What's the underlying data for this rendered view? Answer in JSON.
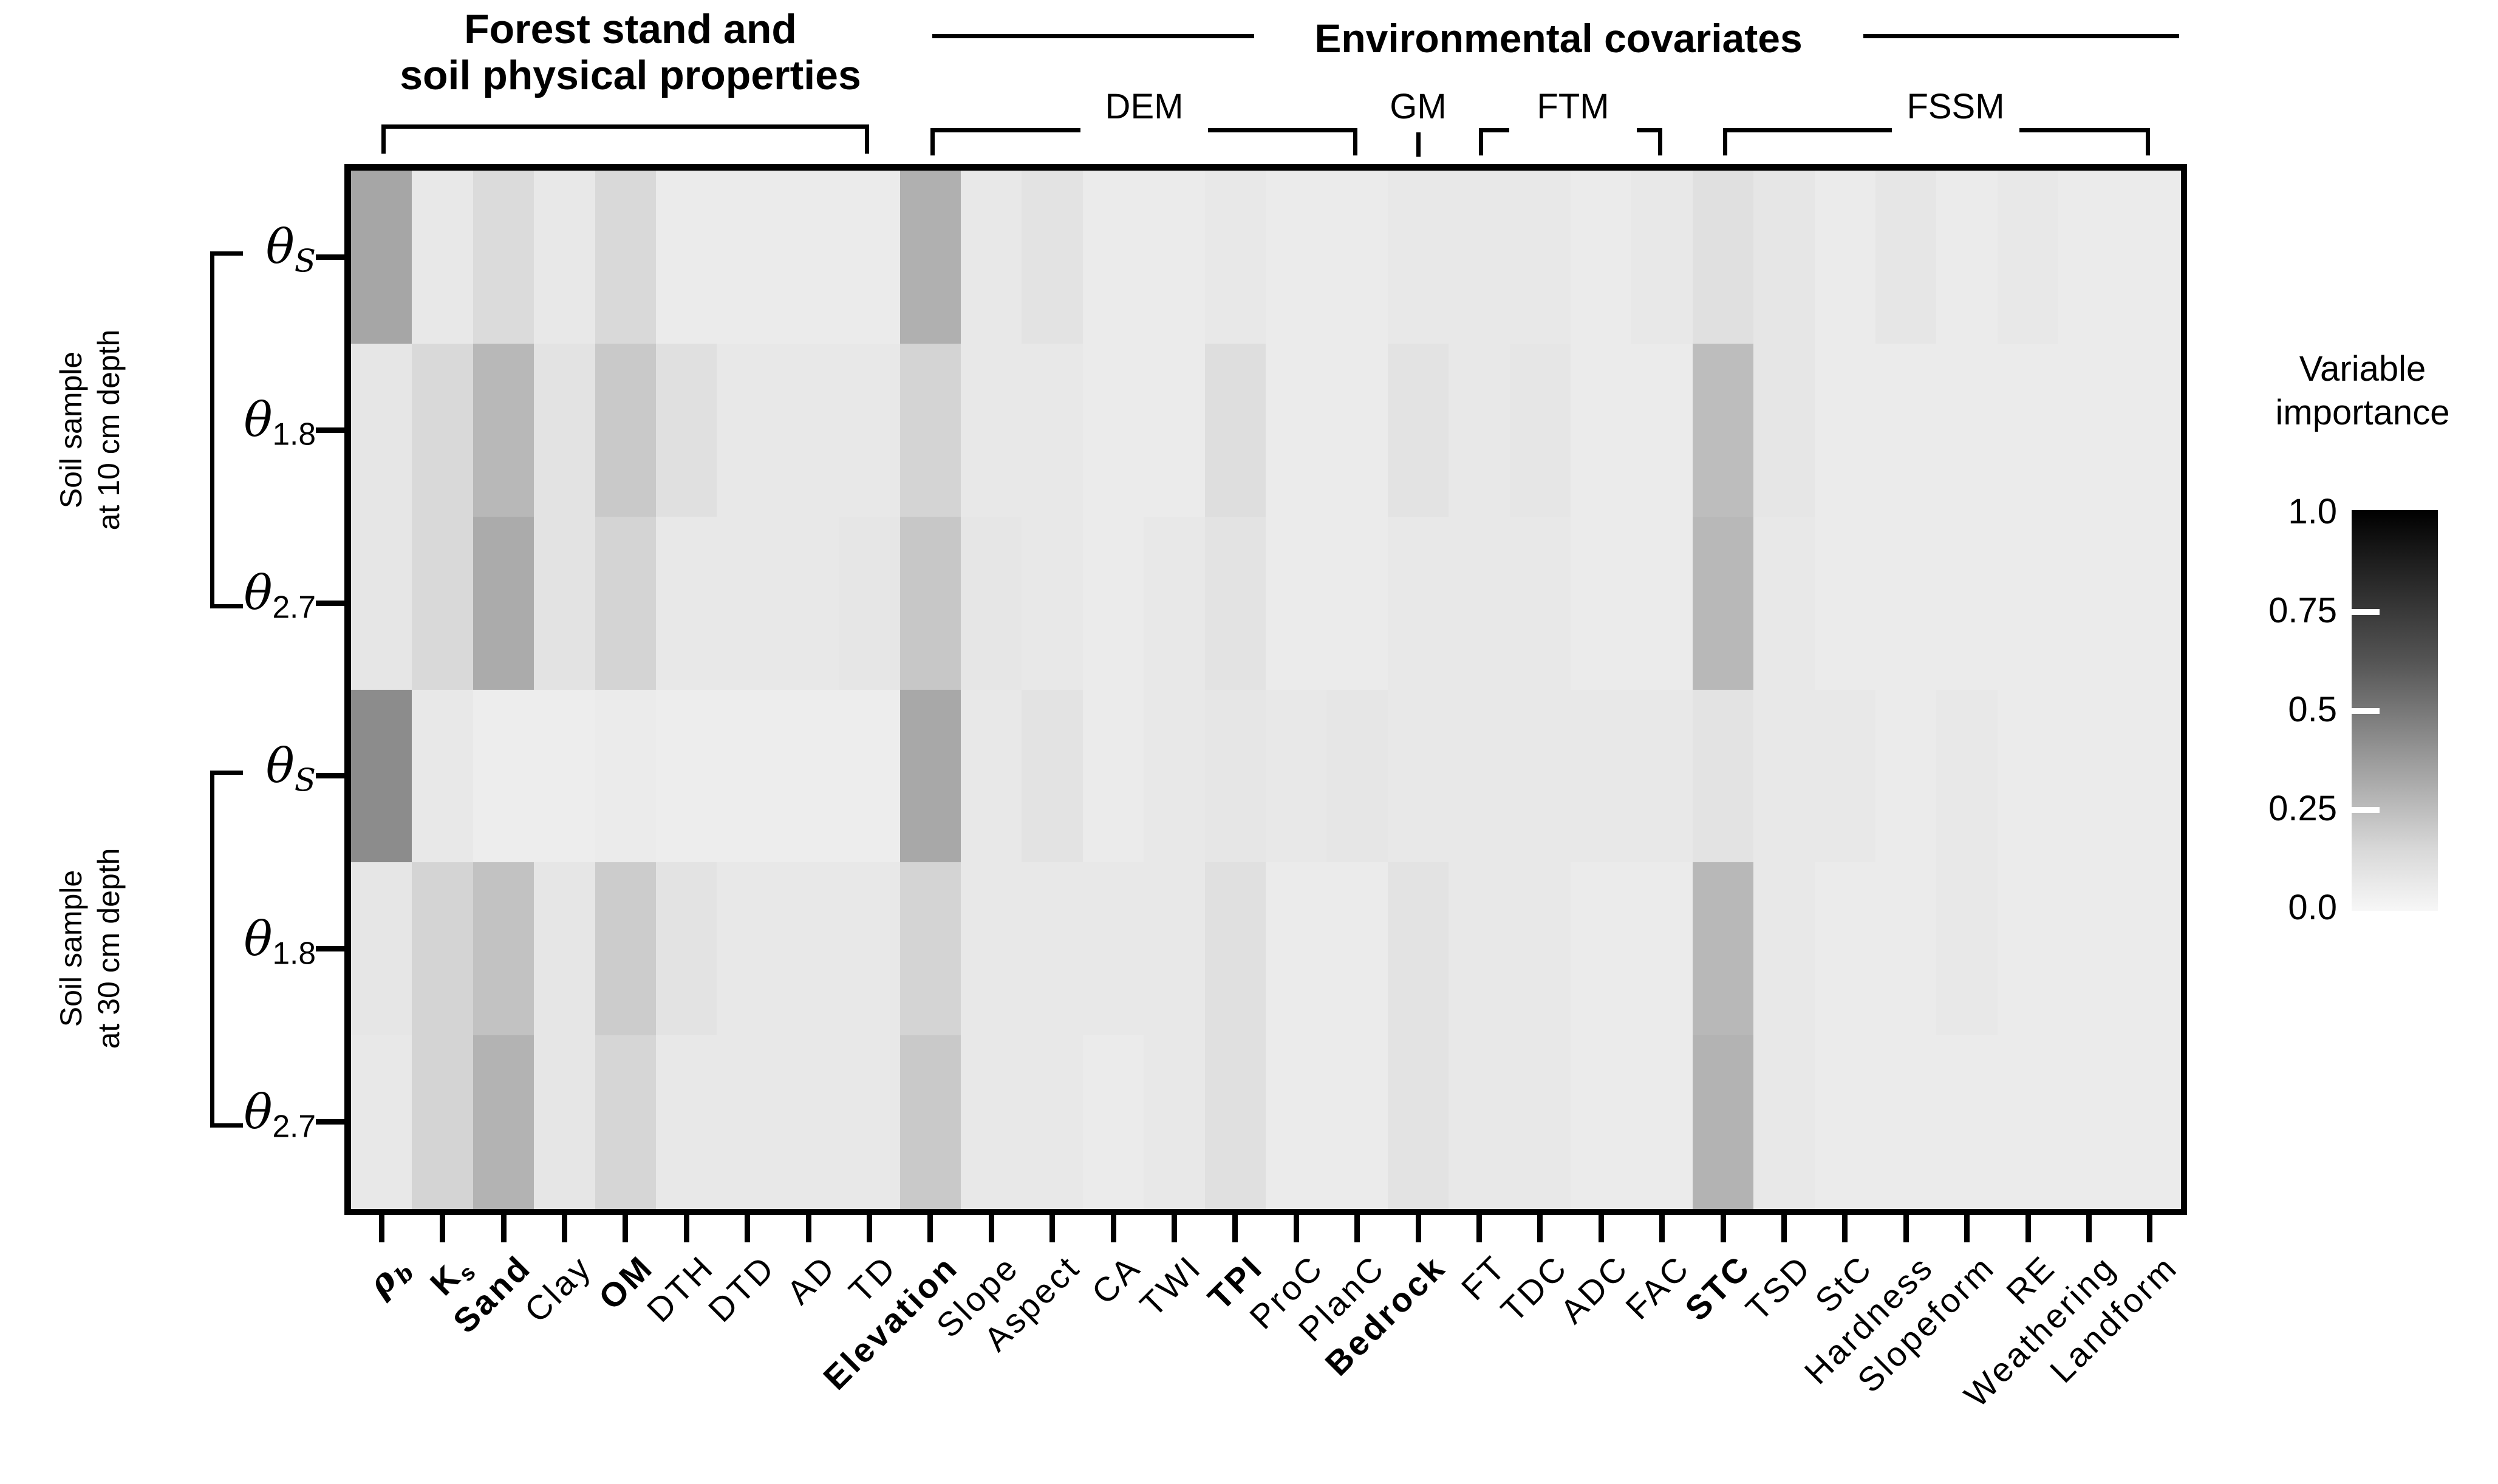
{
  "chart_data": {
    "type": "heatmap",
    "description": "Variable importance heatmap for soil moisture models",
    "header_groups": {
      "forest": {
        "lines": [
          "Forest stand and",
          "soil physical properties"
        ],
        "col_start": 0,
        "col_end": 8
      },
      "environmental": {
        "title": "Environmental covariates",
        "col_start": 9,
        "col_end": 29
      }
    },
    "subgroups": [
      {
        "label": "DEM",
        "col_start": 9,
        "col_end": 16
      },
      {
        "label": "GM",
        "col_start": 17,
        "col_end": 17
      },
      {
        "label": "FTM",
        "col_start": 18,
        "col_end": 21
      },
      {
        "label": "FSSM",
        "col_start": 22,
        "col_end": 29
      }
    ],
    "row_groups": [
      {
        "lines": [
          "Soil sample",
          "at 10 cm depth"
        ],
        "row_start": 0,
        "row_end": 2
      },
      {
        "lines": [
          "Soil sample",
          "at 30 cm depth"
        ],
        "row_start": 3,
        "row_end": 5
      }
    ],
    "rows": [
      {
        "base": "θ",
        "sub": "S",
        "sub_italic": true
      },
      {
        "base": "θ",
        "sub": "1.8",
        "sub_italic": false
      },
      {
        "base": "θ",
        "sub": "2.7",
        "sub_italic": false
      },
      {
        "base": "θ",
        "sub": "S",
        "sub_italic": true
      },
      {
        "base": "θ",
        "sub": "1.8",
        "sub_italic": false
      },
      {
        "base": "θ",
        "sub": "2.7",
        "sub_italic": false
      }
    ],
    "columns": [
      {
        "base": "ρ",
        "sub": "b",
        "bold": true,
        "math": true
      },
      {
        "base": "K",
        "sub": "s",
        "bold": true
      },
      {
        "base": "Sand",
        "bold": true
      },
      {
        "base": "Clay"
      },
      {
        "base": "OM",
        "bold": true
      },
      {
        "base": "DTH"
      },
      {
        "base": "DTD"
      },
      {
        "base": "AD"
      },
      {
        "base": "TD"
      },
      {
        "base": "Elevation",
        "bold": true
      },
      {
        "base": "Slope"
      },
      {
        "base": "Aspect"
      },
      {
        "base": "CA"
      },
      {
        "base": "TWI"
      },
      {
        "base": "TPI",
        "bold": true
      },
      {
        "base": "ProC"
      },
      {
        "base": "PlanC"
      },
      {
        "base": "Bedrock",
        "bold": true
      },
      {
        "base": "FT"
      },
      {
        "base": "TDC"
      },
      {
        "base": "ADC"
      },
      {
        "base": "FAC"
      },
      {
        "base": "STC",
        "bold": true
      },
      {
        "base": "TSD"
      },
      {
        "base": "StC"
      },
      {
        "base": "Hardness"
      },
      {
        "base": "Slopeform"
      },
      {
        "base": "RE"
      },
      {
        "base": "Weathering"
      },
      {
        "base": "Landform"
      }
    ],
    "values": [
      [
        0.35,
        0.09,
        0.14,
        0.09,
        0.15,
        0.08,
        0.08,
        0.08,
        0.08,
        0.31,
        0.09,
        0.11,
        0.08,
        0.08,
        0.09,
        0.08,
        0.08,
        0.09,
        0.09,
        0.09,
        0.08,
        0.09,
        0.12,
        0.1,
        0.08,
        0.1,
        0.08,
        0.09,
        0.08,
        0.08
      ],
      [
        0.1,
        0.15,
        0.28,
        0.11,
        0.21,
        0.12,
        0.09,
        0.09,
        0.09,
        0.17,
        0.09,
        0.09,
        0.08,
        0.08,
        0.13,
        0.08,
        0.08,
        0.11,
        0.09,
        0.1,
        0.08,
        0.08,
        0.26,
        0.1,
        0.08,
        0.08,
        0.08,
        0.08,
        0.08,
        0.08
      ],
      [
        0.1,
        0.15,
        0.33,
        0.11,
        0.17,
        0.09,
        0.09,
        0.09,
        0.1,
        0.22,
        0.1,
        0.09,
        0.08,
        0.09,
        0.11,
        0.08,
        0.08,
        0.09,
        0.09,
        0.09,
        0.08,
        0.08,
        0.28,
        0.09,
        0.08,
        0.08,
        0.08,
        0.08,
        0.08,
        0.08
      ],
      [
        0.45,
        0.09,
        0.07,
        0.07,
        0.08,
        0.07,
        0.07,
        0.07,
        0.07,
        0.34,
        0.09,
        0.11,
        0.08,
        0.09,
        0.1,
        0.09,
        0.1,
        0.09,
        0.09,
        0.09,
        0.09,
        0.09,
        0.11,
        0.09,
        0.09,
        0.08,
        0.09,
        0.08,
        0.08,
        0.08
      ],
      [
        0.1,
        0.17,
        0.24,
        0.1,
        0.2,
        0.11,
        0.09,
        0.09,
        0.09,
        0.17,
        0.09,
        0.09,
        0.09,
        0.09,
        0.12,
        0.08,
        0.08,
        0.11,
        0.09,
        0.09,
        0.08,
        0.08,
        0.28,
        0.09,
        0.08,
        0.08,
        0.09,
        0.08,
        0.08,
        0.08
      ],
      [
        0.09,
        0.17,
        0.3,
        0.1,
        0.16,
        0.09,
        0.09,
        0.09,
        0.09,
        0.21,
        0.09,
        0.09,
        0.08,
        0.09,
        0.12,
        0.08,
        0.08,
        0.11,
        0.09,
        0.09,
        0.08,
        0.08,
        0.3,
        0.09,
        0.08,
        0.08,
        0.08,
        0.08,
        0.08,
        0.08
      ]
    ],
    "value_range": [
      0,
      1
    ],
    "colors": {
      "high": "#000000",
      "low": "#f7f7f7"
    },
    "legend": {
      "title_lines": [
        "Variable",
        "importance"
      ],
      "ticks": [
        "1.0",
        "0.75",
        "0.5",
        "0.25",
        "0.0"
      ]
    }
  }
}
